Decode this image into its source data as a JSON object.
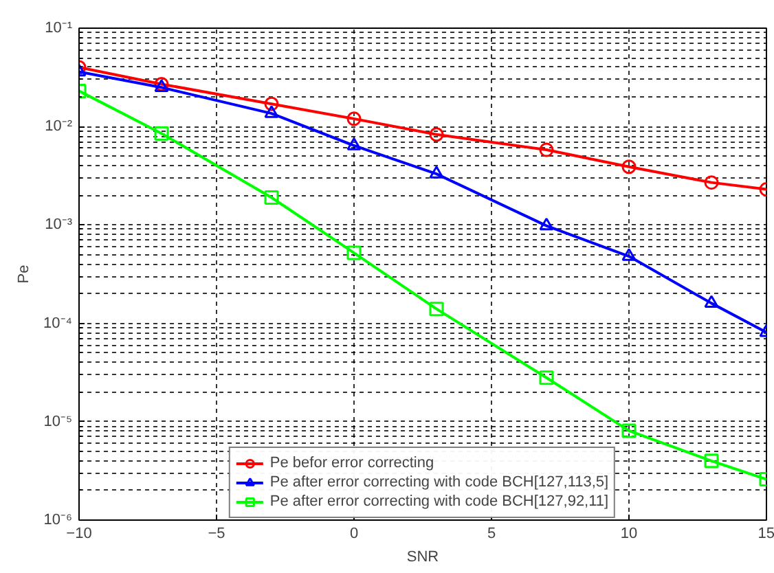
{
  "chart_data": {
    "type": "line",
    "xlabel": "SNR",
    "ylabel": "Pe",
    "x": [
      -10,
      -7,
      -3,
      0,
      3,
      7,
      10,
      13,
      15
    ],
    "series": [
      {
        "name": "Pe befor error correcting",
        "color": "#ff0000",
        "marker": "circle",
        "values": [
          0.04,
          0.027,
          0.017,
          0.012,
          0.0083,
          0.0058,
          0.0039,
          0.0027,
          0.0023
        ]
      },
      {
        "name": "Pe after error correcting with code BCH[127,113,5]",
        "color": "#0000ff",
        "marker": "triangle",
        "values": [
          0.036,
          0.025,
          0.0136,
          0.0064,
          0.0033,
          0.00098,
          0.00048,
          0.00016,
          8.1e-05
        ]
      },
      {
        "name": "Pe after error correcting with code BCH[127,92,11]",
        "color": "#00ff00",
        "marker": "square",
        "values": [
          0.023,
          0.0085,
          0.0019,
          0.00052,
          0.00014,
          2.8e-05,
          8.1e-06,
          4e-06,
          2.6e-06
        ]
      }
    ],
    "xlim": [
      -10,
      15
    ],
    "xticks": [
      -10,
      -5,
      0,
      5,
      10,
      15
    ],
    "ylim": [
      1e-06,
      0.1
    ],
    "yticks": [
      {
        "value": 1e-06,
        "label": "10⁻⁶"
      },
      {
        "value": 1e-05,
        "label": "10⁻⁵"
      },
      {
        "value": 0.0001,
        "label": "10⁻⁴"
      },
      {
        "value": 0.001,
        "label": "10⁻³"
      },
      {
        "value": 0.01,
        "label": "10⁻²"
      },
      {
        "value": 0.1,
        "label": "10⁻¹"
      }
    ],
    "log": "y",
    "grid": true,
    "legend": "bottom",
    "line_style": "solid"
  }
}
